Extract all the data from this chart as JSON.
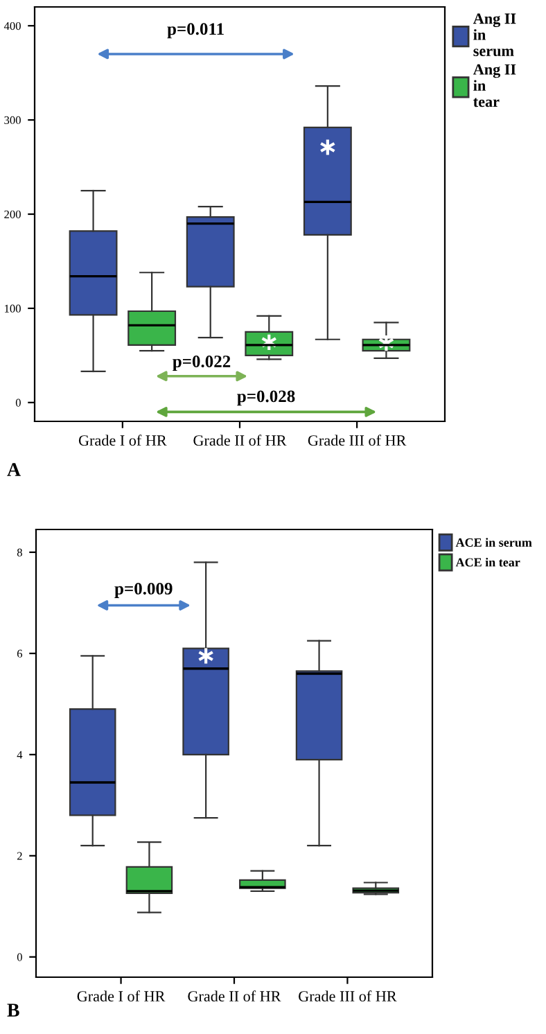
{
  "chart_data": [
    {
      "type": "box",
      "categories": [
        "Grade I of HR",
        "Grade II of HR",
        "Grade III of HR"
      ],
      "ylim": [
        -20,
        420
      ],
      "yticks": [
        0,
        100,
        200,
        300,
        400
      ],
      "legend": "right",
      "grid": false,
      "series": [
        {
          "name": "Ang II in serum",
          "color": "#3953a4",
          "boxes": [
            {
              "low": 33,
              "q1": 93,
              "median": 134,
              "q3": 182,
              "high": 225
            },
            {
              "low": 69,
              "q1": 123,
              "median": 190,
              "q3": 197,
              "high": 208
            },
            {
              "low": 67,
              "q1": 178,
              "median": 213,
              "q3": 292,
              "high": 336,
              "outliers": [
                271
              ]
            }
          ]
        },
        {
          "name": "Ang II in tear",
          "color": "#3ab54a",
          "boxes": [
            {
              "low": 55,
              "q1": 61,
              "median": 82,
              "q3": 97,
              "high": 138
            },
            {
              "low": 46,
              "q1": 50,
              "median": 61,
              "q3": 75,
              "high": 92,
              "outliers": [
                64
              ]
            },
            {
              "low": 47,
              "q1": 55,
              "median": 61,
              "q3": 67,
              "high": 85,
              "outliers": [
                63
              ]
            }
          ]
        }
      ],
      "annotations": [
        "p=0.011",
        "p=0.022",
        "p=0.028",
        "A"
      ]
    },
    {
      "type": "box",
      "categories": [
        "Grade I of HR",
        "Grade II of HR",
        "Grade III of HR"
      ],
      "ylim": [
        -0.4,
        8.45
      ],
      "yticks": [
        0,
        2,
        4,
        6,
        8
      ],
      "legend": "right",
      "grid": false,
      "series": [
        {
          "name": "ACE in serum",
          "color": "#3953a4",
          "boxes": [
            {
              "low": 2.2,
              "q1": 2.8,
              "median": 3.45,
              "q3": 4.9,
              "high": 5.95
            },
            {
              "low": 2.75,
              "q1": 4.0,
              "median": 5.7,
              "q3": 6.1,
              "high": 7.8,
              "outliers": [
                5.95
              ]
            },
            {
              "low": 2.2,
              "q1": 3.9,
              "median": 5.6,
              "q3": 5.65,
              "high": 6.25
            }
          ]
        },
        {
          "name": "ACE in tear",
          "color": "#3ab54a",
          "boxes": [
            {
              "low": 0.88,
              "q1": 1.26,
              "median": 1.3,
              "q3": 1.78,
              "high": 2.27
            },
            {
              "low": 1.3,
              "q1": 1.36,
              "median": 1.38,
              "q3": 1.52,
              "high": 1.7
            },
            {
              "low": 1.24,
              "q1": 1.27,
              "median": 1.31,
              "q3": 1.36,
              "high": 1.47
            }
          ]
        }
      ],
      "annotations": [
        "p=0.009",
        "B"
      ]
    }
  ]
}
